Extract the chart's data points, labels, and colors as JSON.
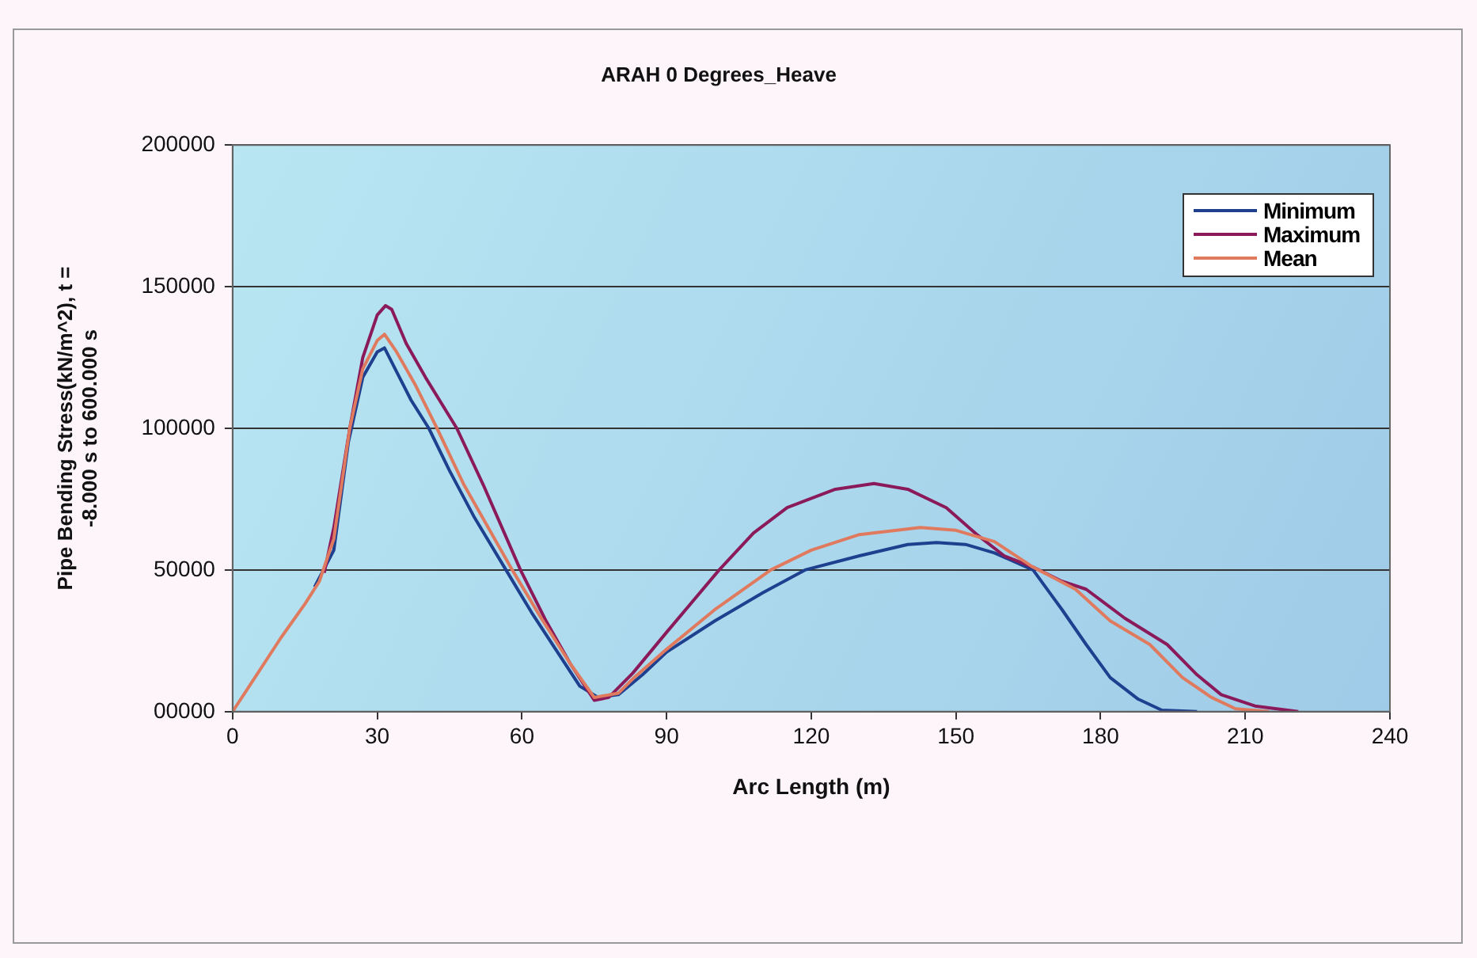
{
  "chart_data": {
    "type": "line",
    "title": "ARAH 0 Degrees_Heave",
    "xlabel": "Arc Length (m)",
    "ylabel": "Pipe Bending Stress(kN/m^2), t = -8.000 s to 600.000 s",
    "xlim": [
      0,
      240
    ],
    "xticks": [
      0,
      30,
      60,
      90,
      120,
      150,
      180,
      210,
      240
    ],
    "ylim": [
      0,
      200000
    ],
    "yticks": [
      {
        "value": 0,
        "label": "00000"
      },
      50000,
      100000,
      150000,
      200000
    ],
    "grid": "y",
    "legend": "top right",
    "marker": "none",
    "line_style": "solid",
    "series": [
      {
        "name": "Minimum",
        "color": "#1f3f8f",
        "x": [
          17,
          21,
          24,
          27,
          30,
          31.5,
          34,
          37,
          40.7,
          45,
          50,
          56.7,
          62,
          67,
          72,
          75.8,
          80,
          85,
          90,
          100,
          110,
          118.7,
          130,
          140,
          146,
          152,
          158,
          166,
          172,
          177,
          182,
          187.8,
          192.7,
          200
        ],
        "values": [
          44000,
          57000,
          95000,
          118000,
          127000,
          128400,
          120000,
          110000,
          100000,
          85000,
          69000,
          50000,
          35000,
          22000,
          9000,
          5000,
          6000,
          13000,
          21000,
          32000,
          42000,
          50000,
          55000,
          59000,
          59700,
          59000,
          56000,
          50000,
          36000,
          23700,
          12000,
          4400,
          500,
          0
        ]
      },
      {
        "name": "Maximum",
        "color": "#8b1a5a",
        "x": [
          19,
          21,
          24.3,
          27,
          30,
          31.7,
          33,
          36,
          40,
          46.5,
          52,
          59.7,
          65,
          70,
          75,
          78,
          83,
          90,
          100.9,
          108,
          115,
          125,
          133,
          140,
          148,
          154.5,
          160,
          166,
          172,
          177,
          185,
          193.8,
          200,
          205,
          212,
          221
        ],
        "values": [
          49000,
          65000,
          100000,
          125000,
          140000,
          143300,
          142000,
          130000,
          118000,
          100000,
          80000,
          50000,
          32000,
          17000,
          4000,
          5000,
          13600,
          28000,
          50000,
          63000,
          72000,
          78500,
          80500,
          78500,
          72000,
          62300,
          55000,
          51000,
          46000,
          43200,
          33000,
          23700,
          13000,
          6000,
          2000,
          0
        ]
      },
      {
        "name": "Mean",
        "color": "#e07a5f",
        "x": [
          0,
          5,
          10,
          15,
          18,
          21,
          24.3,
          27,
          30,
          31.5,
          34,
          38,
          42.4,
          48,
          53,
          58,
          64,
          70,
          75,
          80,
          83,
          90,
          100,
          111.6,
          120,
          130,
          142.6,
          150,
          158,
          166,
          174.8,
          182,
          190.2,
          197,
          203,
          208,
          215
        ],
        "values": [
          0,
          13000,
          26000,
          38000,
          46000,
          61000,
          100000,
          121000,
          131000,
          133200,
          127000,
          115000,
          100000,
          80000,
          65000,
          50000,
          33000,
          17000,
          5000,
          6500,
          11600,
          22000,
          36000,
          50000,
          57000,
          62500,
          65000,
          64000,
          60000,
          51000,
          43200,
          32000,
          23700,
          12000,
          5000,
          1000,
          0
        ]
      }
    ]
  }
}
